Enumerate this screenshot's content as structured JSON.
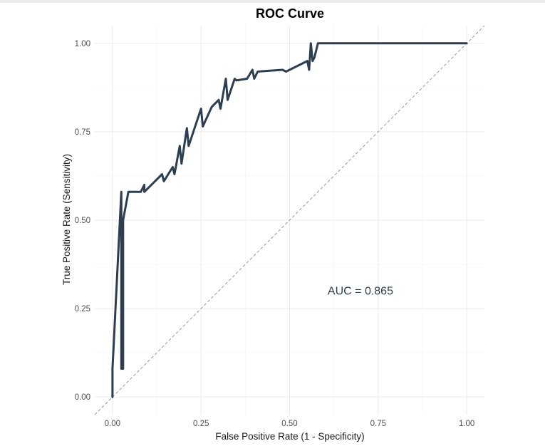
{
  "chart_data": {
    "type": "line",
    "title": "ROC Curve",
    "xlabel": "False Positive Rate (1 - Specificity)",
    "ylabel": "True Positive Rate (Sensitivity)",
    "xlim": [
      -0.05,
      1.05
    ],
    "ylim": [
      -0.05,
      1.05
    ],
    "x_ticks": [
      0,
      0.25,
      0.5,
      0.75,
      1
    ],
    "x_tick_labels": [
      "0.00",
      "0.25",
      "0.50",
      "0.75",
      "1.00"
    ],
    "y_ticks": [
      0,
      0.25,
      0.5,
      0.75,
      1
    ],
    "y_tick_labels": [
      "0.00",
      "0.25",
      "0.50",
      "0.75",
      "1.00"
    ],
    "grid": true,
    "annotation": {
      "text": "AUC = 0.865",
      "x": 0.7,
      "y": 0.3
    },
    "reference_line": {
      "x": [
        -0.05,
        1.05
      ],
      "y": [
        -0.05,
        1.05
      ],
      "style": "dashed"
    },
    "series": [
      {
        "line_color": "#2c3e50",
        "x": [
          0.0,
          0.0,
          0.025,
          0.025,
          0.03,
          0.03,
          0.045,
          0.045,
          0.08,
          0.09,
          0.09,
          0.14,
          0.145,
          0.17,
          0.175,
          0.19,
          0.195,
          0.21,
          0.215,
          0.25,
          0.255,
          0.28,
          0.3,
          0.305,
          0.32,
          0.325,
          0.345,
          0.35,
          0.38,
          0.395,
          0.4,
          0.41,
          0.48,
          0.49,
          0.55,
          0.555,
          0.56,
          0.565,
          0.57,
          0.58,
          1.0
        ],
        "y": [
          0.0,
          0.08,
          0.58,
          0.08,
          0.08,
          0.5,
          0.58,
          0.58,
          0.58,
          0.6,
          0.58,
          0.63,
          0.61,
          0.65,
          0.63,
          0.71,
          0.66,
          0.76,
          0.71,
          0.815,
          0.765,
          0.82,
          0.84,
          0.815,
          0.9,
          0.84,
          0.9,
          0.895,
          0.9,
          0.925,
          0.9,
          0.92,
          0.925,
          0.92,
          0.95,
          0.925,
          1.0,
          0.95,
          0.96,
          1.0,
          1.0
        ]
      }
    ],
    "colors": {
      "curve": "#2c3e50",
      "grid": "#ebebeb",
      "reference": "#808080",
      "background": "#ffffff"
    }
  }
}
